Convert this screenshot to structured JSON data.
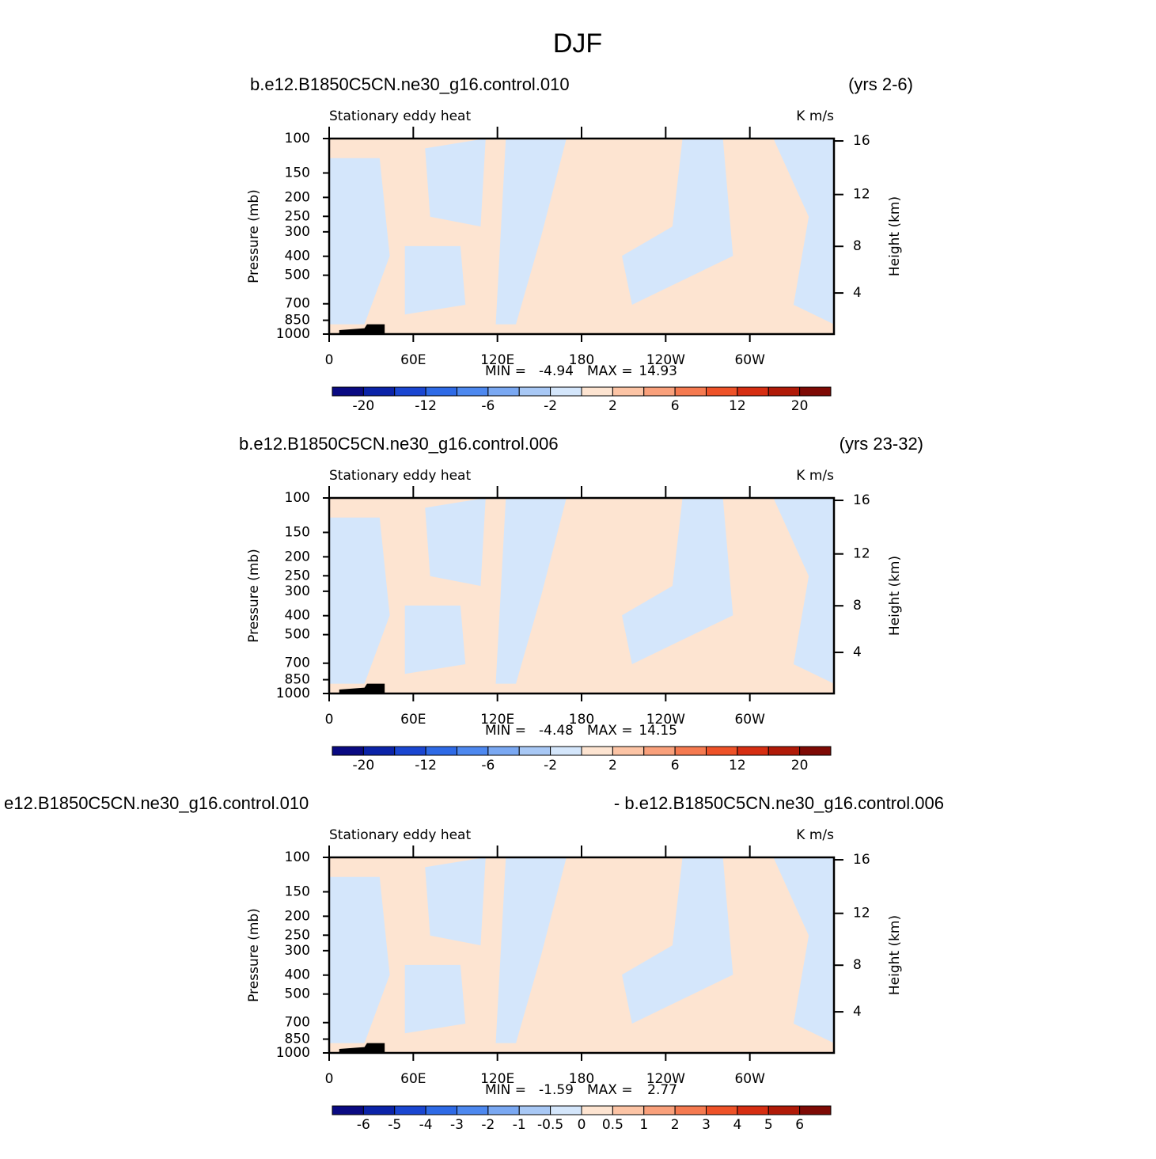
{
  "title": "DJF",
  "chart_data": [
    {
      "type": "contour",
      "title_left": "b.e12.B1850C5CN.ne30_g16.control.010",
      "title_right": "(yrs 2-6)",
      "left_string": "Stationary eddy heat",
      "right_string": "K m/s",
      "ylabel": "Pressure (mb)",
      "y2label": "Height (km)",
      "log_y": true,
      "ylim": [
        1000,
        100
      ],
      "yticks": [
        100,
        150,
        200,
        250,
        300,
        400,
        500,
        700,
        850,
        1000
      ],
      "y2ticks": [
        4,
        8,
        12,
        16
      ],
      "xlim": [
        0,
        360
      ],
      "xticks": [
        0,
        {
          "value": 60,
          "label": "60E"
        },
        {
          "value": 120,
          "label": "120E"
        },
        180,
        {
          "value": 240,
          "label": "120W"
        },
        {
          "value": 300,
          "label": "60W"
        }
      ],
      "min_label": "MIN =",
      "min": -4.94,
      "max_label": "MAX =",
      "max": 14.93,
      "colorbar_labels": [
        -20,
        -12,
        -6,
        -2,
        2,
        6,
        12,
        20
      ]
    },
    {
      "type": "contour",
      "title_left": "b.e12.B1850C5CN.ne30_g16.control.006",
      "title_right": "(yrs 23-32)",
      "left_string": "Stationary eddy heat",
      "right_string": "K m/s",
      "ylabel": "Pressure (mb)",
      "y2label": "Height (km)",
      "log_y": true,
      "ylim": [
        1000,
        100
      ],
      "yticks": [
        100,
        150,
        200,
        250,
        300,
        400,
        500,
        700,
        850,
        1000
      ],
      "y2ticks": [
        4,
        8,
        12,
        16
      ],
      "xlim": [
        0,
        360
      ],
      "xticks": [
        0,
        {
          "value": 60,
          "label": "60E"
        },
        {
          "value": 120,
          "label": "120E"
        },
        180,
        {
          "value": 240,
          "label": "120W"
        },
        {
          "value": 300,
          "label": "60W"
        }
      ],
      "min_label": "MIN =",
      "min": -4.48,
      "max_label": "MAX =",
      "max": 14.15,
      "colorbar_labels": [
        -20,
        -12,
        -6,
        -2,
        2,
        6,
        12,
        20
      ]
    },
    {
      "type": "contour",
      "title_left": "e12.B1850C5CN.ne30_g16.control.010",
      "title_right": "- b.e12.B1850C5CN.ne30_g16.control.006",
      "left_string": "Stationary eddy heat",
      "right_string": "K m/s",
      "ylabel": "Pressure (mb)",
      "y2label": "Height (km)",
      "log_y": true,
      "ylim": [
        1000,
        100
      ],
      "yticks": [
        100,
        150,
        200,
        250,
        300,
        400,
        500,
        700,
        850,
        1000
      ],
      "y2ticks": [
        4,
        8,
        12,
        16
      ],
      "xlim": [
        0,
        360
      ],
      "xticks": [
        0,
        {
          "value": 60,
          "label": "60E"
        },
        {
          "value": 120,
          "label": "120E"
        },
        180,
        {
          "value": 240,
          "label": "120W"
        },
        {
          "value": 300,
          "label": "60W"
        }
      ],
      "min_label": "MIN =",
      "min": -1.59,
      "max_label": "MAX =",
      "max": 2.77,
      "colorbar_labels": [
        -6,
        -5,
        -4,
        -3,
        -2,
        -1,
        -0.5,
        0,
        0.5,
        1,
        2,
        3,
        4,
        5,
        6
      ]
    }
  ],
  "colors": [
    "#0a0a82",
    "#0b23a8",
    "#1a46d1",
    "#2e6ae6",
    "#4d88ef",
    "#7aa8f2",
    "#a8c8f5",
    "#d4e6fb",
    "#fde4d1",
    "#fcc4a5",
    "#f9a07b",
    "#f57a50",
    "#ee5228",
    "#d62e12",
    "#b01a08",
    "#7e0a05"
  ]
}
